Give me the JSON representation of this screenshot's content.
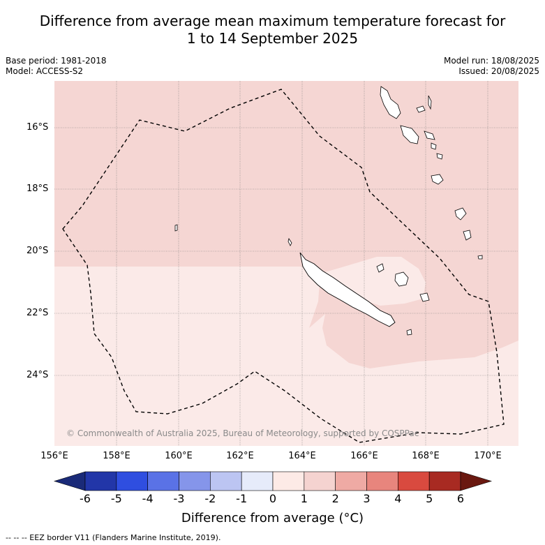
{
  "title_line1": "Difference from average mean maximum temperature forecast for",
  "title_line2": "1 to 14 September 2025",
  "base_period": "Base period: 1981-2018",
  "model": "Model: ACCESS-S2",
  "model_run": "Model run: 18/08/2025",
  "issued": "Issued: 20/08/2025",
  "lat_labels": [
    "16°S",
    "18°S",
    "20°S",
    "22°S",
    "24°S"
  ],
  "lon_labels": [
    "156°E",
    "158°E",
    "160°E",
    "162°E",
    "164°E",
    "166°E",
    "168°E",
    "170°E"
  ],
  "copyright": "© Commonwealth of Australia 2025, Bureau of Meteorology, supported by COSPPac",
  "colorbar": {
    "ticks": [
      "-6",
      "-5",
      "-4",
      "-3",
      "-2",
      "-1",
      "0",
      "1",
      "2",
      "3",
      "4",
      "5",
      "6"
    ],
    "colors": [
      "#1a2a78",
      "#2236a8",
      "#2f4ee0",
      "#5a72e6",
      "#8595ea",
      "#bcc5f2",
      "#e6ebfa",
      "#fdeae6",
      "#f5d3d0",
      "#efaaa4",
      "#e8857d",
      "#d94a3f",
      "#a82a22",
      "#6a1810"
    ],
    "title": "Difference from average (°C)"
  },
  "legend_note": "-- -- -- EEZ border V11 (Flanders Marine Institute, 2019).",
  "field_colors": {
    "warm_1_2": "#f5d6d3",
    "warm_0_1": "#fbeae8",
    "land": "#ffffff"
  }
}
